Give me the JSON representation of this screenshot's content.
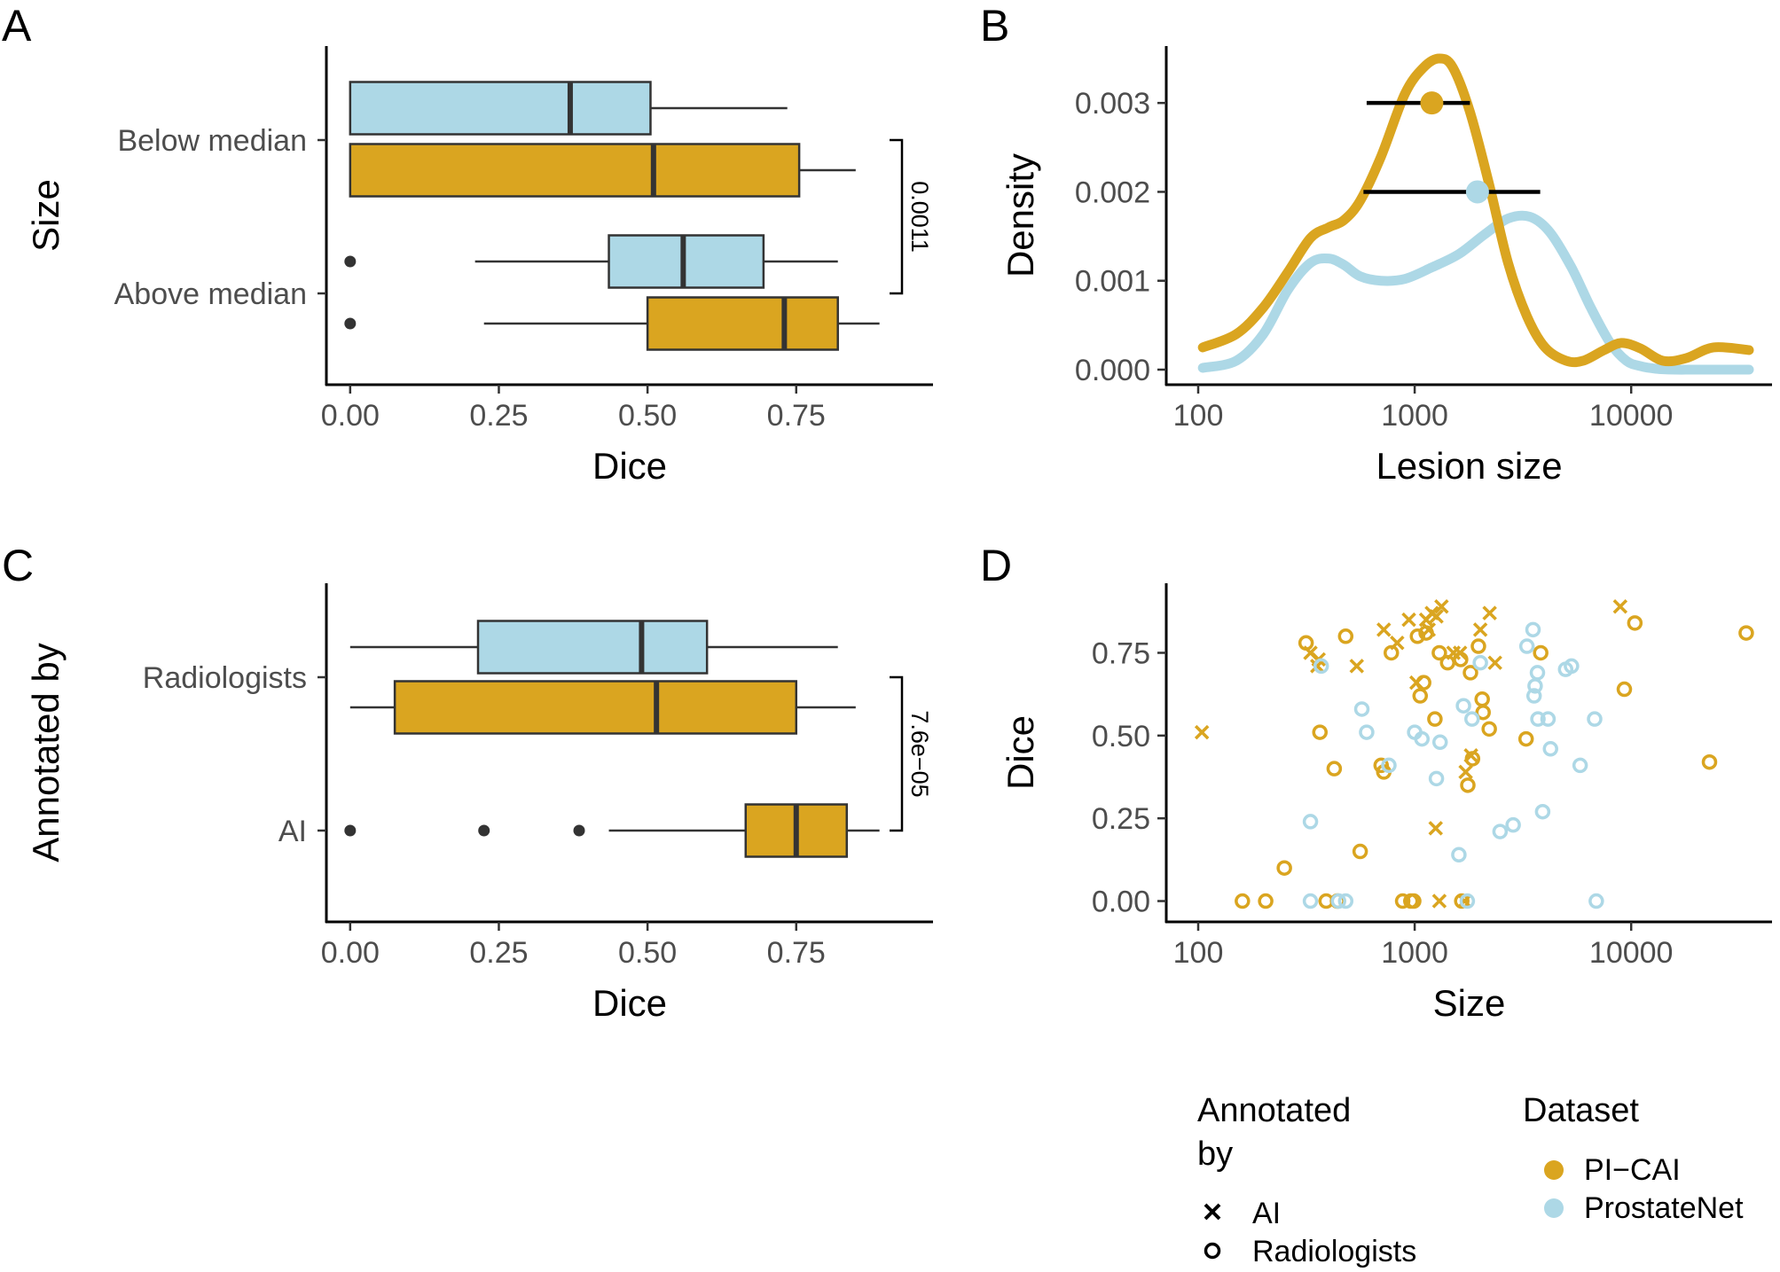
{
  "colors": {
    "pi_cai": "#DAA520",
    "prostatenet": "#ADD8E6",
    "outlier": "#333333",
    "axis": "#000000",
    "whisker": "#333333"
  },
  "chart_data": [
    {
      "panel": "A",
      "type": "boxplot",
      "orientation": "horizontal",
      "xlabel": "Dice",
      "ylabel": "Size",
      "xlim": [
        -0.04,
        0.98
      ],
      "xticks": [
        0,
        0.25,
        0.5,
        0.75
      ],
      "xtick_labels": [
        "0.00",
        "0.25",
        "0.50",
        "0.75"
      ],
      "groups": [
        {
          "label": "Below median",
          "boxes": [
            {
              "dataset": "ProstateNet",
              "min": 0,
              "q1": 0,
              "median": 0.37,
              "q3": 0.505,
              "max": 0.735,
              "outliers": []
            },
            {
              "dataset": "PI-CAI",
              "min": 0,
              "q1": 0,
              "median": 0.51,
              "q3": 0.755,
              "max": 0.85,
              "outliers": []
            }
          ]
        },
        {
          "label": "Above median",
          "boxes": [
            {
              "dataset": "ProstateNet",
              "min": 0.21,
              "q1": 0.435,
              "median": 0.56,
              "q3": 0.695,
              "max": 0.82,
              "outliers": [
                0
              ]
            },
            {
              "dataset": "PI-CAI",
              "min": 0.225,
              "q1": 0.5,
              "median": 0.73,
              "q3": 0.82,
              "max": 0.89,
              "outliers": [
                0
              ]
            }
          ]
        }
      ],
      "annotation": {
        "text": "0.0011"
      }
    },
    {
      "panel": "B",
      "type": "line",
      "subtype": "density",
      "xscale": "log10",
      "xlabel": "Lesion size",
      "ylabel": "Density",
      "xlim": [
        100,
        35000
      ],
      "ylim": [
        0,
        0.0036
      ],
      "xticks": [
        100,
        1000,
        10000
      ],
      "xtick_labels": [
        "100",
        "1000",
        "10000"
      ],
      "yticks": [
        0,
        0.001,
        0.002,
        0.003
      ],
      "ytick_labels": [
        "0.000",
        "0.001",
        "0.002",
        "0.003"
      ],
      "series": [
        {
          "name": "PI-CAI",
          "x": [
            105,
            150,
            200,
            260,
            330,
            400,
            470,
            560,
            700,
            900,
            1100,
            1300,
            1500,
            1800,
            2200,
            2700,
            3300,
            4000,
            5000,
            6000,
            7500,
            9000,
            11000,
            14000,
            18000,
            24000,
            35000
          ],
          "y": [
            0.00025,
            0.0004,
            0.0007,
            0.0011,
            0.00148,
            0.0016,
            0.00168,
            0.0019,
            0.0024,
            0.0031,
            0.0034,
            0.0035,
            0.0034,
            0.0029,
            0.0021,
            0.0012,
            0.0006,
            0.00025,
            0.0001,
            0.0001,
            0.00022,
            0.0003,
            0.00024,
            0.0001,
            0.00013,
            0.00025,
            0.00022
          ]
        },
        {
          "name": "ProstateNet",
          "x": [
            105,
            150,
            200,
            260,
            330,
            400,
            470,
            560,
            700,
            900,
            1200,
            1600,
            2100,
            2700,
            3400,
            4200,
            5300,
            6500,
            8000,
            9500,
            11000,
            13000,
            16000,
            20000,
            35000
          ],
          "y": [
            2e-05,
            0.0001,
            0.0004,
            0.0009,
            0.0012,
            0.00125,
            0.00118,
            0.00105,
            0.001,
            0.00102,
            0.00115,
            0.0013,
            0.00152,
            0.0017,
            0.00172,
            0.00155,
            0.00115,
            0.0007,
            0.0003,
            0.0001,
            4e-05,
            1e-05,
            0,
            0,
            0
          ]
        }
      ],
      "points": [
        {
          "name": "PI-CAI",
          "x": 1200,
          "y": 0.003,
          "xmin": 600,
          "xmax": 1800
        },
        {
          "name": "ProstateNet",
          "x": 1950,
          "y": 0.002,
          "xmin": 580,
          "xmax": 3800
        }
      ]
    },
    {
      "panel": "C",
      "type": "boxplot",
      "orientation": "horizontal",
      "xlabel": "Dice",
      "ylabel": "Annotated by",
      "xlim": [
        -0.04,
        0.98
      ],
      "xticks": [
        0,
        0.25,
        0.5,
        0.75
      ],
      "xtick_labels": [
        "0.00",
        "0.25",
        "0.50",
        "0.75"
      ],
      "groups": [
        {
          "label": "Radiologists",
          "boxes": [
            {
              "dataset": "ProstateNet",
              "min": 0,
              "q1": 0.215,
              "median": 0.49,
              "q3": 0.6,
              "max": 0.82,
              "outliers": []
            },
            {
              "dataset": "PI-CAI",
              "min": 0,
              "q1": 0.075,
              "median": 0.515,
              "q3": 0.75,
              "max": 0.85,
              "outliers": []
            }
          ]
        },
        {
          "label": "AI",
          "boxes": [
            {
              "dataset": "PI-CAI",
              "min": 0.435,
              "q1": 0.665,
              "median": 0.75,
              "q3": 0.835,
              "max": 0.89,
              "outliers": [
                0,
                0.225,
                0.385
              ]
            }
          ]
        }
      ],
      "annotation": {
        "text": "7.6e−05"
      }
    },
    {
      "panel": "D",
      "type": "scatter",
      "xscale": "log10",
      "xlabel": "Size",
      "ylabel": "Dice",
      "xlim": [
        100,
        35000
      ],
      "ylim": [
        -0.02,
        0.92
      ],
      "xticks": [
        100,
        1000,
        10000
      ],
      "xtick_labels": [
        "100",
        "1000",
        "10000"
      ],
      "yticks": [
        0,
        0.25,
        0.5,
        0.75
      ],
      "ytick_labels": [
        "0.00",
        "0.25",
        "0.50",
        "0.75"
      ],
      "series": [
        {
          "name": "PI-CAI",
          "annotated_by": "AI",
          "marker": "x",
          "points": [
            [
              104,
              0.51
            ],
            [
              330,
              0.75
            ],
            [
              355,
              0.71
            ],
            [
              360,
              0.73
            ],
            [
              540,
              0.71
            ],
            [
              720,
              0.82
            ],
            [
              830,
              0.78
            ],
            [
              940,
              0.85
            ],
            [
              1020,
              0.66
            ],
            [
              1130,
              0.85
            ],
            [
              1160,
              0.82
            ],
            [
              1200,
              0.87
            ],
            [
              1260,
              0.86
            ],
            [
              1330,
              0.89
            ],
            [
              1510,
              0.75
            ],
            [
              1620,
              0.75
            ],
            [
              1720,
              0.39
            ],
            [
              1820,
              0.44
            ],
            [
              2010,
              0.82
            ],
            [
              2220,
              0.87
            ],
            [
              2350,
              0.72
            ],
            [
              8900,
              0.89
            ],
            [
              1250,
              0.22
            ],
            [
              1300,
              0
            ],
            [
              1700,
              0
            ]
          ]
        },
        {
          "name": "PI-CAI",
          "annotated_by": "Radiologists",
          "marker": "o",
          "points": [
            [
              160,
              0
            ],
            [
              205,
              0
            ],
            [
              250,
              0.1
            ],
            [
              315,
              0.78
            ],
            [
              365,
              0.51
            ],
            [
              390,
              0
            ],
            [
              425,
              0.4
            ],
            [
              440,
              0
            ],
            [
              480,
              0.8
            ],
            [
              560,
              0.15
            ],
            [
              700,
              0.41
            ],
            [
              720,
              0.39
            ],
            [
              780,
              0.75
            ],
            [
              880,
              0
            ],
            [
              960,
              0
            ],
            [
              990,
              0
            ],
            [
              1030,
              0.8
            ],
            [
              1060,
              0.62
            ],
            [
              1100,
              0.66
            ],
            [
              1130,
              0.81
            ],
            [
              1240,
              0.55
            ],
            [
              1300,
              0.75
            ],
            [
              1420,
              0.72
            ],
            [
              1630,
              0.73
            ],
            [
              1650,
              0
            ],
            [
              1760,
              0.35
            ],
            [
              1810,
              0.69
            ],
            [
              1850,
              0.43
            ],
            [
              1970,
              0.77
            ],
            [
              2050,
              0.61
            ],
            [
              2070,
              0.57
            ],
            [
              2210,
              0.52
            ],
            [
              3270,
              0.49
            ],
            [
              3820,
              0.75
            ],
            [
              9300,
              0.64
            ],
            [
              10400,
              0.84
            ],
            [
              23000,
              0.42
            ],
            [
              34000,
              0.81
            ]
          ]
        },
        {
          "name": "ProstateNet",
          "annotated_by": "Radiologists",
          "marker": "o",
          "points": [
            [
              330,
              0.24
            ],
            [
              330,
              0
            ],
            [
              370,
              0.71
            ],
            [
              445,
              0
            ],
            [
              480,
              0
            ],
            [
              570,
              0.58
            ],
            [
              600,
              0.51
            ],
            [
              760,
              0.41
            ],
            [
              1000,
              0.51
            ],
            [
              1080,
              0.49
            ],
            [
              1260,
              0.37
            ],
            [
              1310,
              0.48
            ],
            [
              1600,
              0.14
            ],
            [
              1680,
              0.59
            ],
            [
              1750,
              0
            ],
            [
              1840,
              0.55
            ],
            [
              2010,
              0.72
            ],
            [
              2480,
              0.21
            ],
            [
              2850,
              0.23
            ],
            [
              3300,
              0.77
            ],
            [
              3520,
              0.82
            ],
            [
              3560,
              0.62
            ],
            [
              3600,
              0.65
            ],
            [
              3690,
              0.69
            ],
            [
              3710,
              0.55
            ],
            [
              3900,
              0.27
            ],
            [
              4130,
              0.55
            ],
            [
              4240,
              0.46
            ],
            [
              4980,
              0.7
            ],
            [
              5300,
              0.71
            ],
            [
              5810,
              0.41
            ],
            [
              6780,
              0.55
            ],
            [
              6900,
              0
            ]
          ]
        }
      ]
    }
  ],
  "panel_labels": {
    "A": "A",
    "B": "B",
    "C": "C",
    "D": "D"
  },
  "legend": {
    "annotated_by": {
      "title_line1": "Annotated",
      "title_line2": "by",
      "items": [
        "AI",
        "Radiologists"
      ]
    },
    "dataset": {
      "title": "Dataset",
      "items": [
        "PI−CAI",
        "ProstateNet"
      ]
    }
  }
}
